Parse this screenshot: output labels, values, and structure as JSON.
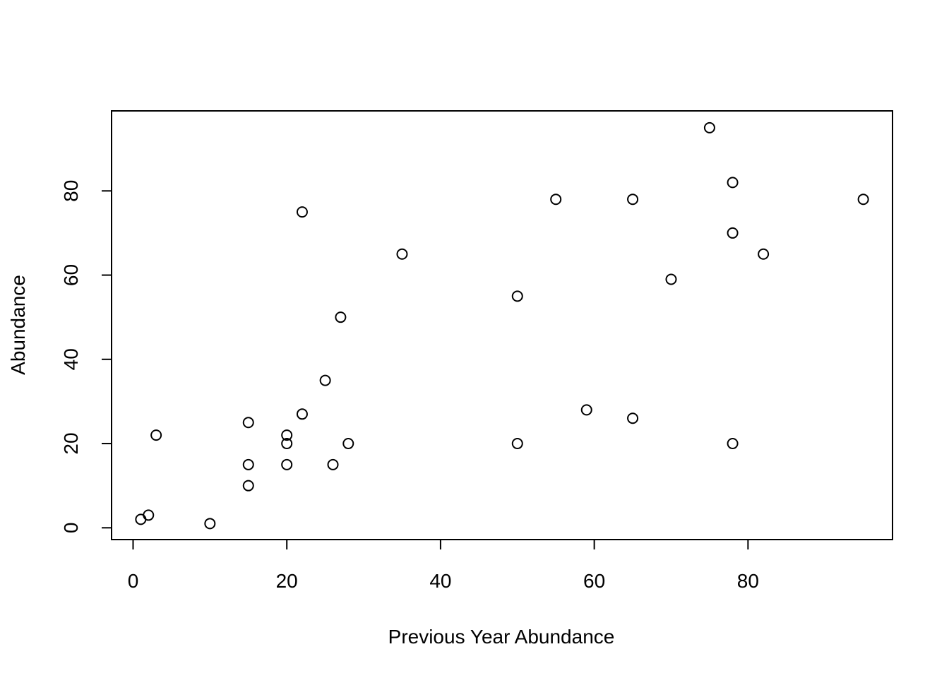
{
  "chart_data": {
    "type": "scatter",
    "title": "",
    "xlabel": "Previous Year Abundance",
    "ylabel": "Abundance",
    "xlim": [
      -2.8,
      98.8
    ],
    "ylim": [
      -2.8,
      99
    ],
    "xticks": [
      0,
      20,
      40,
      60,
      80
    ],
    "yticks": [
      0,
      20,
      40,
      60,
      80
    ],
    "xtick_labels": [
      "0",
      "20",
      "40",
      "60",
      "80"
    ],
    "ytick_labels": [
      "0",
      "20",
      "40",
      "60",
      "80"
    ],
    "grid": false,
    "marker": "open-circle",
    "x": [
      1,
      2,
      3,
      10,
      15,
      15,
      15,
      20,
      20,
      20,
      22,
      22,
      25,
      26,
      27,
      28,
      35,
      50,
      50,
      55,
      59,
      65,
      65,
      70,
      75,
      78,
      78,
      78,
      82,
      95
    ],
    "y": [
      2,
      3,
      22,
      1,
      25,
      15,
      10,
      22,
      20,
      15,
      75,
      27,
      35,
      15,
      50,
      20,
      65,
      55,
      20,
      78,
      28,
      78,
      26,
      59,
      95,
      82,
      70,
      20,
      65,
      78
    ]
  }
}
